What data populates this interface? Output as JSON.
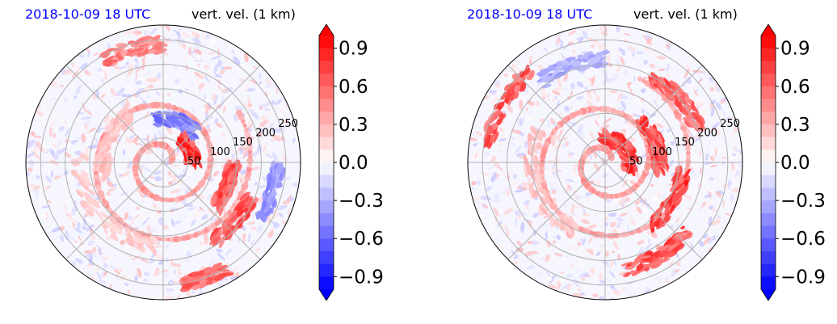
{
  "colors": {
    "title_date": "#0000ff",
    "positive": "#ff0000",
    "negative": "#0000ff",
    "neutral": "#ffffff"
  },
  "panels": [
    {
      "title_left": "2018-10-09 18 UTC",
      "title_right": "vert. vel. (1 km)",
      "colorbar": {
        "min": -1.0,
        "max": 1.0,
        "ticks": [
          "0.9",
          "0.6",
          "0.3",
          "0.0",
          "−0.3",
          "−0.6",
          "−0.9"
        ],
        "tick_values": [
          0.9,
          0.6,
          0.3,
          0.0,
          -0.3,
          -0.6,
          -0.9
        ],
        "extend": "both"
      }
    },
    {
      "title_left": "2018-10-09 18 UTC",
      "title_right": "vert. vel. (1 km)",
      "colorbar": {
        "min": -1.0,
        "max": 1.0,
        "ticks": [
          "0.9",
          "0.6",
          "0.3",
          "0.0",
          "−0.3",
          "−0.6",
          "−0.9"
        ],
        "tick_values": [
          0.9,
          0.6,
          0.3,
          0.0,
          -0.3,
          -0.6,
          -0.9
        ],
        "extend": "both"
      }
    }
  ],
  "chart_data": [
    {
      "type": "heatmap",
      "projection": "polar",
      "title": "2018-10-09 18 UTC",
      "subtitle": "vert. vel. (1 km)",
      "radial_ticks": [
        "50",
        "100",
        "150",
        "200",
        "250"
      ],
      "radial_values": [
        50,
        100,
        150,
        200,
        250
      ],
      "colorbar_range": [
        -1.0,
        1.0
      ],
      "colormap": "bwr",
      "features": [
        {
          "kind": "band",
          "r": 90,
          "th": 70,
          "w": 60,
          "intensity": -0.6
        },
        {
          "kind": "band",
          "r": 60,
          "th": 25,
          "w": 55,
          "intensity": 0.95
        },
        {
          "kind": "band",
          "r": 140,
          "th": 340,
          "w": 40,
          "intensity": 0.8
        },
        {
          "kind": "band",
          "r": 190,
          "th": 320,
          "w": 35,
          "intensity": 0.8
        },
        {
          "kind": "band",
          "r": 230,
          "th": 345,
          "w": 30,
          "intensity": -0.5
        },
        {
          "kind": "band",
          "r": 250,
          "th": 290,
          "w": 20,
          "intensity": 0.7
        },
        {
          "kind": "band",
          "r": 240,
          "th": 105,
          "w": 30,
          "intensity": 0.6
        },
        {
          "kind": "band",
          "r": 120,
          "th": 160,
          "w": 70,
          "intensity": 0.3
        },
        {
          "kind": "band",
          "r": 170,
          "th": 220,
          "w": 90,
          "intensity": 0.25
        }
      ]
    },
    {
      "type": "heatmap",
      "projection": "polar",
      "title": "2018-10-09 18 UTC",
      "subtitle": "vert. vel. (1 km)",
      "radial_ticks": [
        "50",
        "100",
        "150",
        "200",
        "250"
      ],
      "radial_values": [
        50,
        100,
        150,
        200,
        250
      ],
      "colorbar_range": [
        -1.0,
        1.0
      ],
      "colormap": "bwr",
      "features": [
        {
          "kind": "band",
          "r": 50,
          "th": 40,
          "w": 120,
          "intensity": 0.9
        },
        {
          "kind": "band",
          "r": 110,
          "th": 20,
          "w": 60,
          "intensity": 0.85
        },
        {
          "kind": "band",
          "r": 160,
          "th": 330,
          "w": 50,
          "intensity": 0.9
        },
        {
          "kind": "band",
          "r": 220,
          "th": 300,
          "w": 40,
          "intensity": 0.8
        },
        {
          "kind": "band",
          "r": 240,
          "th": 150,
          "w": 40,
          "intensity": 0.8
        },
        {
          "kind": "band",
          "r": 210,
          "th": 110,
          "w": 40,
          "intensity": -0.4
        },
        {
          "kind": "band",
          "r": 200,
          "th": 40,
          "w": 40,
          "intensity": 0.75
        },
        {
          "kind": "band",
          "r": 150,
          "th": 200,
          "w": 90,
          "intensity": 0.3
        }
      ]
    }
  ]
}
